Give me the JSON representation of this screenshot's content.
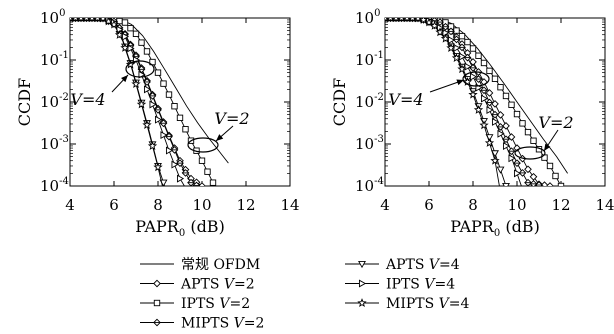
{
  "chart_data": [
    {
      "type": "line",
      "xlabel": "PAPR",
      "xlabel_sub": "0",
      "xlabel_unit": "(dB)",
      "ylabel": "CCDF",
      "xlim": [
        4,
        14
      ],
      "ylim": [
        0.0001,
        1
      ],
      "yscale": "log",
      "xticks": [
        "4",
        "6",
        "8",
        "10",
        "12",
        "14"
      ],
      "yticks": [
        {
          "base": "10",
          "exp": "0"
        },
        {
          "base": "10",
          "exp": "-1"
        },
        {
          "base": "10",
          "exp": "-2"
        },
        {
          "base": "10",
          "exp": "-3"
        },
        {
          "base": "10",
          "exp": "-4"
        }
      ],
      "annotations": [
        {
          "text": "V=4"
        },
        {
          "text": "V=2"
        }
      ],
      "series": [
        {
          "name": "常规 OFDM",
          "x": [
            4,
            5,
            5.8,
            6.3,
            6.8,
            7.3,
            7.8,
            8.3,
            8.8,
            9.3,
            9.8,
            10.3,
            10.8,
            11.2
          ],
          "y": [
            1,
            1,
            0.99,
            0.93,
            0.7,
            0.38,
            0.16,
            0.06,
            0.022,
            0.008,
            0.0032,
            0.0014,
            0.00065,
            0.00035
          ]
        },
        {
          "name": "APTS V=2",
          "x": [
            4,
            5,
            5.5,
            6,
            6.5,
            7,
            7.5,
            8,
            8.5,
            9,
            9.5,
            10
          ],
          "y": [
            1,
            1,
            0.99,
            0.82,
            0.42,
            0.13,
            0.032,
            0.007,
            0.0016,
            0.0004,
            0.00015,
            0.0001
          ]
        },
        {
          "name": "IPTS V=2",
          "x": [
            4,
            5,
            5.8,
            6.5,
            7,
            7.5,
            8,
            8.5,
            9,
            9.5,
            10,
            10.5
          ],
          "y": [
            1,
            1,
            0.98,
            0.78,
            0.42,
            0.16,
            0.05,
            0.015,
            0.0042,
            0.0012,
            0.0004,
            0.00012
          ]
        },
        {
          "name": "MIPTS V=2",
          "x": [
            4,
            5,
            5.5,
            6,
            6.5,
            7,
            7.5,
            8,
            8.5,
            9,
            9.5,
            9.8
          ],
          "y": [
            1,
            1,
            0.99,
            0.83,
            0.4,
            0.12,
            0.03,
            0.0065,
            0.0015,
            0.00035,
            0.00012,
            0.0001
          ]
        },
        {
          "name": "APTS V=4",
          "x": [
            4,
            5,
            5.5,
            6,
            6.4,
            6.8,
            7.2,
            7.6,
            8,
            8.3
          ],
          "y": [
            1,
            1,
            0.98,
            0.72,
            0.3,
            0.07,
            0.012,
            0.002,
            0.0003,
            0.0001
          ]
        },
        {
          "name": "IPTS V=4",
          "x": [
            4,
            5,
            5.5,
            6,
            6.5,
            7,
            7.5,
            8,
            8.5,
            9,
            9.2
          ],
          "y": [
            1,
            1,
            0.99,
            0.78,
            0.36,
            0.1,
            0.02,
            0.0038,
            0.0007,
            0.00015,
            0.0001
          ]
        },
        {
          "name": "MIPTS V=4",
          "x": [
            4,
            5,
            5.5,
            6,
            6.4,
            6.8,
            7.2,
            7.6,
            8,
            8.2
          ],
          "y": [
            1,
            1,
            0.98,
            0.7,
            0.28,
            0.065,
            0.011,
            0.0018,
            0.00028,
            0.0001
          ]
        }
      ]
    },
    {
      "type": "line",
      "xlabel": "PAPR",
      "xlabel_sub": "0",
      "xlabel_unit": "(dB)",
      "ylabel": "CCDF",
      "xlim": [
        4,
        14
      ],
      "ylim": [
        0.0001,
        1
      ],
      "yscale": "log",
      "xticks": [
        "4",
        "6",
        "8",
        "10",
        "12",
        "14"
      ],
      "yticks": [
        {
          "base": "10",
          "exp": "0"
        },
        {
          "base": "10",
          "exp": "-1"
        },
        {
          "base": "10",
          "exp": "-2"
        },
        {
          "base": "10",
          "exp": "-3"
        },
        {
          "base": "10",
          "exp": "-4"
        }
      ],
      "annotations": [
        {
          "text": "V=4"
        },
        {
          "text": "V=2"
        }
      ],
      "series": [
        {
          "name": "常规 OFDM",
          "x": [
            4,
            5,
            5.8,
            6.4,
            7,
            7.6,
            8.2,
            8.8,
            9.4,
            10,
            10.6,
            11.2,
            11.8,
            12.3
          ],
          "y": [
            1,
            1,
            0.99,
            0.95,
            0.75,
            0.42,
            0.19,
            0.075,
            0.028,
            0.01,
            0.0036,
            0.0013,
            0.0005,
            0.0002
          ]
        },
        {
          "name": "APTS V=2",
          "x": [
            4,
            5,
            5.8,
            6.5,
            7,
            7.5,
            8,
            8.5,
            9,
            9.5,
            10,
            10.5,
            11,
            11.5
          ],
          "y": [
            1,
            1,
            0.99,
            0.84,
            0.52,
            0.24,
            0.09,
            0.03,
            0.009,
            0.0027,
            0.0008,
            0.00025,
            0.00011,
            0.0001
          ]
        },
        {
          "name": "IPTS V=2",
          "x": [
            4,
            5,
            6,
            6.7,
            7.3,
            7.9,
            8.5,
            9.1,
            9.7,
            10.3,
            10.9,
            11.5,
            12
          ],
          "y": [
            1,
            1,
            0.98,
            0.82,
            0.48,
            0.22,
            0.085,
            0.03,
            0.0095,
            0.0028,
            0.0009,
            0.0003,
            0.0001
          ]
        },
        {
          "name": "MIPTS V=2",
          "x": [
            4,
            5,
            5.8,
            6.5,
            7,
            7.5,
            8,
            8.5,
            9,
            9.5,
            10,
            10.5,
            11.2
          ],
          "y": [
            1,
            1,
            0.99,
            0.8,
            0.48,
            0.2,
            0.065,
            0.019,
            0.005,
            0.0013,
            0.00035,
            0.00012,
            0.0001
          ]
        },
        {
          "name": "APTS V=4",
          "x": [
            4,
            5,
            5.6,
            6.2,
            6.8,
            7.4,
            8,
            8.5,
            9,
            9.5
          ],
          "y": [
            1,
            1,
            0.98,
            0.72,
            0.32,
            0.09,
            0.018,
            0.0035,
            0.0006,
            0.0001
          ]
        },
        {
          "name": "IPTS V=4",
          "x": [
            4,
            5,
            5.6,
            6.2,
            6.8,
            7.4,
            8,
            8.6,
            9.2,
            9.8,
            10.2
          ],
          "y": [
            1,
            1,
            0.99,
            0.8,
            0.42,
            0.15,
            0.04,
            0.0095,
            0.002,
            0.0004,
            0.0001
          ]
        },
        {
          "name": "MIPTS V=4",
          "x": [
            4,
            5,
            5.6,
            6.2,
            6.8,
            7.4,
            8,
            8.5,
            9,
            9.2
          ],
          "y": [
            1,
            1,
            0.98,
            0.7,
            0.3,
            0.08,
            0.015,
            0.0028,
            0.0004,
            0.0001
          ]
        }
      ]
    }
  ],
  "legend": {
    "items": [
      {
        "label": "常规 OFDM",
        "marker": "none"
      },
      {
        "label": "APTS ",
        "var": "V",
        "value": "=2",
        "marker": "diamond"
      },
      {
        "label": "IPTS ",
        "var": "V",
        "value": "=2",
        "marker": "square"
      },
      {
        "label": "MIPTS ",
        "var": "V",
        "value": "=2",
        "marker": "diamond-plus"
      },
      {
        "label": "APTS ",
        "var": "V",
        "value": "=4",
        "marker": "triangle-down"
      },
      {
        "label": "IPTS ",
        "var": "V",
        "value": "=4",
        "marker": "triangle-right"
      },
      {
        "label": "MIPTS ",
        "var": "V",
        "value": "=4",
        "marker": "star"
      }
    ]
  }
}
